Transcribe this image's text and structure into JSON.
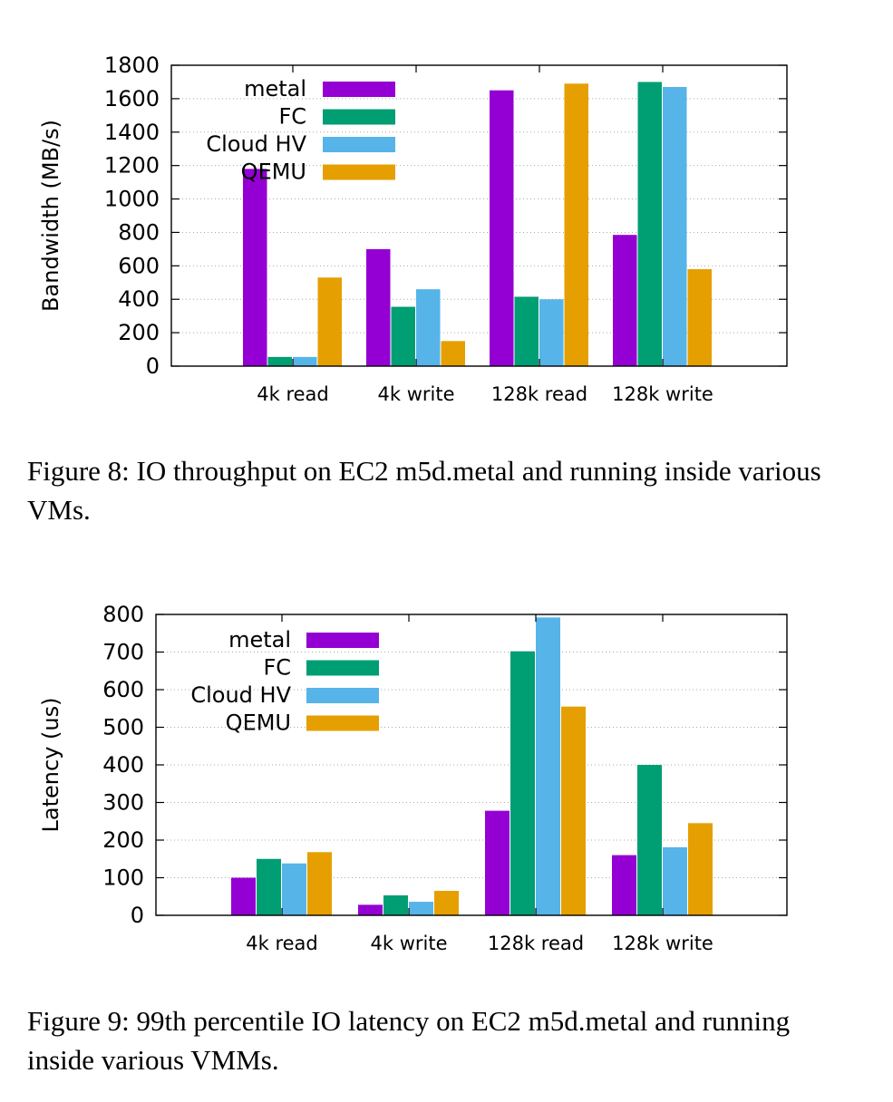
{
  "figures": [
    {
      "caption": "Figure 8: IO throughput on EC2 m5d.metal and running inside various VMs.",
      "chart_data": {
        "type": "bar",
        "title": "",
        "xlabel": "",
        "ylabel": "Bandwidth (MB/s)",
        "ylim": [
          0,
          1800
        ],
        "yticks": [
          0,
          200,
          400,
          600,
          800,
          1000,
          1200,
          1400,
          1600,
          1800
        ],
        "grid": "horizontal dotted",
        "legend_position": "top-left",
        "categories": [
          "4k read",
          "4k write",
          "128k read",
          "128k write"
        ],
        "series": [
          {
            "name": "metal",
            "color": "#9400d3",
            "values": [
              1180,
              700,
              1650,
              785
            ]
          },
          {
            "name": "FC",
            "color": "#009e73",
            "values": [
              55,
              355,
              415,
              1700
            ]
          },
          {
            "name": "Cloud HV",
            "color": "#56b4e9",
            "values": [
              55,
              460,
              400,
              1670
            ]
          },
          {
            "name": "QEMU",
            "color": "#e69f00",
            "values": [
              530,
              150,
              1690,
              580
            ]
          }
        ]
      }
    },
    {
      "caption": "Figure 9: 99th percentile IO latency on EC2 m5d.metal and running inside various VMMs.",
      "chart_data": {
        "type": "bar",
        "title": "",
        "xlabel": "",
        "ylabel": "Latency (us)",
        "ylim": [
          0,
          800
        ],
        "yticks": [
          0,
          100,
          200,
          300,
          400,
          500,
          600,
          700,
          800
        ],
        "grid": "horizontal dotted",
        "legend_position": "top-left",
        "categories": [
          "4k read",
          "4k write",
          "128k read",
          "128k write"
        ],
        "series": [
          {
            "name": "metal",
            "color": "#9400d3",
            "values": [
              100,
              28,
              278,
              160
            ]
          },
          {
            "name": "FC",
            "color": "#009e73",
            "values": [
              150,
              53,
              702,
              400
            ]
          },
          {
            "name": "Cloud HV",
            "color": "#56b4e9",
            "values": [
              138,
              36,
              792,
              181
            ]
          },
          {
            "name": "QEMU",
            "color": "#e69f00",
            "values": [
              168,
              65,
              555,
              245
            ]
          }
        ]
      }
    }
  ]
}
